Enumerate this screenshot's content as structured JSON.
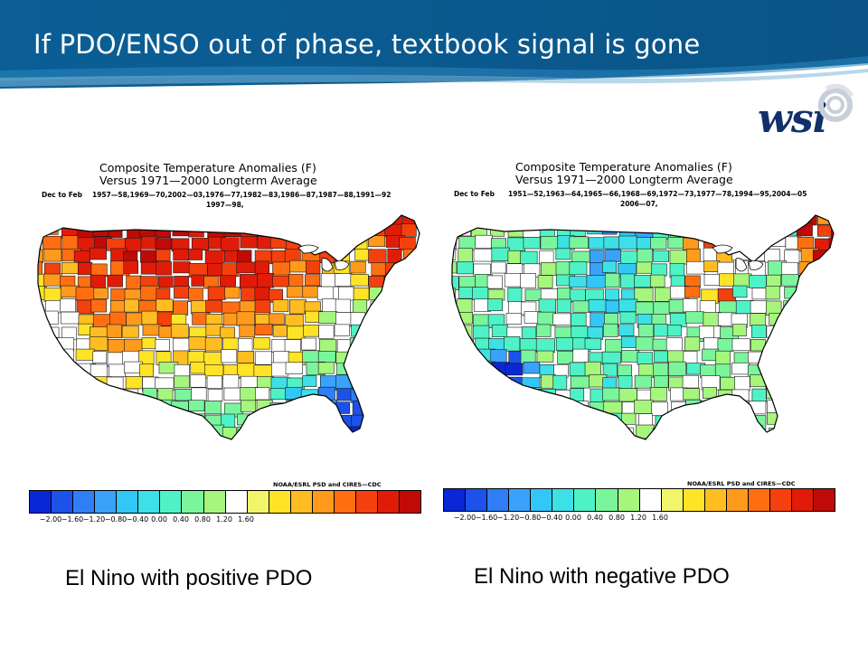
{
  "slide": {
    "title": "If PDO/ENSO out of phase, textbook signal is gone",
    "logo_text": "wsi"
  },
  "colors": {
    "banner_dark": "#0a5a8e",
    "banner_light": "#1f7fb8",
    "logo": "#11306c",
    "scale": [
      "#0a27d6",
      "#1c52ea",
      "#2f7ef5",
      "#3aa2fb",
      "#32c7f7",
      "#3de0e7",
      "#4ef2c6",
      "#7af59c",
      "#a6f57d",
      "#ffffff",
      "#f2f56a",
      "#ffe326",
      "#ffbd22",
      "#ff9a1d",
      "#ff6f12",
      "#f4400c",
      "#e01c08",
      "#bf0a07"
    ]
  },
  "maps": [
    {
      "title_line1": "Composite Temperature Anomalies (F)",
      "title_line2": "Versus 1971—2000 Longterm Average",
      "season": "Dec to Feb",
      "years_line1": "1957—58,1969—70,2002—03,1976—77,1982—83,1986—87,1987—88,1991—92",
      "years_line2": "1997—98,",
      "credit": "NOAA/ESRL PSD and CIRES—CDC",
      "caption": "El Nino with positive PDO",
      "pattern": "warm-north"
    },
    {
      "title_line1": "Composite Temperature Anomalies (F)",
      "title_line2": "Versus 1971—2000 Longterm Average",
      "season": "Dec to Feb",
      "years_line1": "1951—52,1963—64,1965—66,1968—69,1972—73,1977—78,1994—95,2004—05",
      "years_line2": "2006—07,",
      "credit": "NOAA/ESRL PSD and CIRES—CDC",
      "caption": "El Nino with negative PDO",
      "pattern": "cool-mixed"
    }
  ],
  "scale_ticks": [
    "−2.00",
    "−1.60",
    "−1.20",
    "−0.80",
    "−0.40",
    "0.00",
    "0.40",
    "0.80",
    "1.20",
    "1.60"
  ]
}
